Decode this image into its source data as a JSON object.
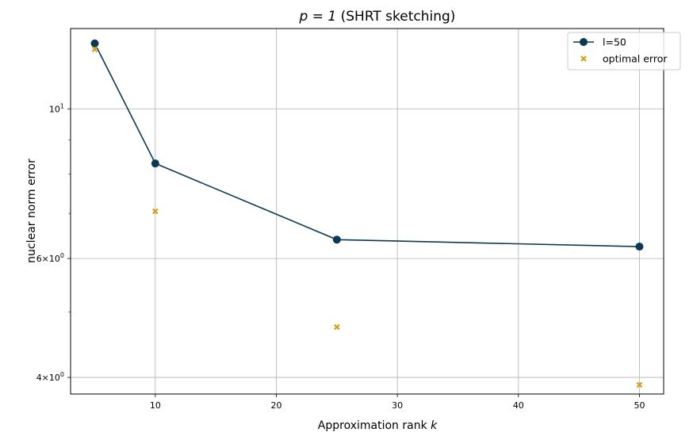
{
  "chart_data": {
    "type": "line",
    "title_math": "p = 1",
    "title_text": " (SHRT sketching)",
    "xlabel_text": "Approximation rank ",
    "xlabel_math": "k",
    "ylabel": "nuclear norm error",
    "xlim": [
      3,
      52
    ],
    "ylim": [
      3.78,
      13.15
    ],
    "yscale": "log",
    "grid": true,
    "legend_position": "upper right",
    "x_ticks": [
      10,
      20,
      30,
      40,
      50
    ],
    "y_ticks": [
      {
        "value": 4,
        "mantissa": "4",
        "exp": "0"
      },
      {
        "value": 6,
        "mantissa": "6",
        "exp": "0"
      },
      {
        "value": 10,
        "mantissa": "10",
        "exp": "1"
      }
    ],
    "y_minor_ticks": [
      5,
      7,
      8,
      9
    ],
    "series": [
      {
        "name": "l=50",
        "kind": "line-marker",
        "color": "#0b3954",
        "x": [
          5,
          10,
          25,
          50
        ],
        "y": [
          12.5,
          8.3,
          6.4,
          6.25
        ]
      },
      {
        "name": "optimal error",
        "kind": "scatter-x",
        "color": "#d4a017",
        "x": [
          5,
          10,
          25,
          50
        ],
        "y": [
          12.25,
          7.05,
          4.75,
          3.9
        ]
      }
    ]
  }
}
